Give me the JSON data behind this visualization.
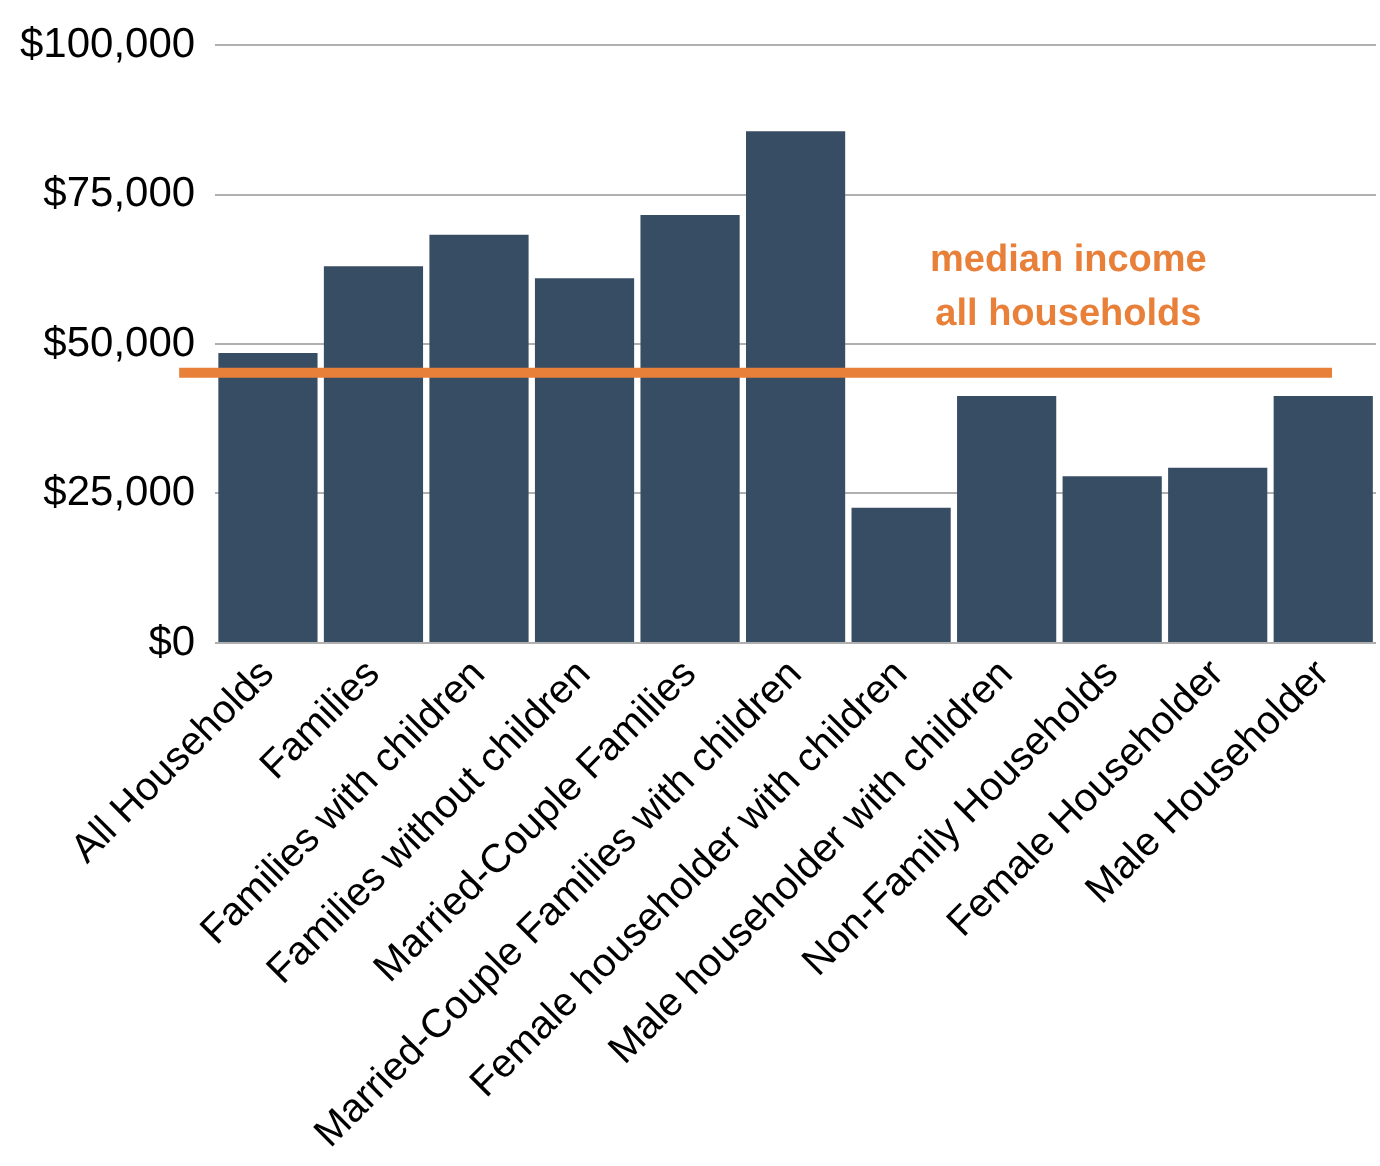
{
  "chart_data": {
    "type": "bar",
    "categories": [
      "All Households",
      "Families",
      "Families with children",
      "Families without children",
      "Married-Couple Families",
      "Married-Couple Families with children",
      "Female householder with children",
      "Male householder with children",
      "Non-Family Households",
      "Female Householder",
      "Male Householder"
    ],
    "values": [
      48500,
      63000,
      68300,
      61000,
      71600,
      85600,
      22600,
      41300,
      27900,
      29300,
      41300
    ],
    "color": "#374d63",
    "ylim": [
      0,
      100000
    ],
    "yticks": [
      {
        "value": 0,
        "label": "$0"
      },
      {
        "value": 25000,
        "label": "$25,000"
      },
      {
        "value": 50000,
        "label": "$50,000"
      },
      {
        "value": 75000,
        "label": "$75,000"
      },
      {
        "value": 100000,
        "label": "$100,000"
      }
    ],
    "grid": "y",
    "legend": false,
    "ref_lines": [
      {
        "axis": "y",
        "value": 45200,
        "label": "median income\nall households",
        "color": "#e8803a"
      }
    ]
  }
}
